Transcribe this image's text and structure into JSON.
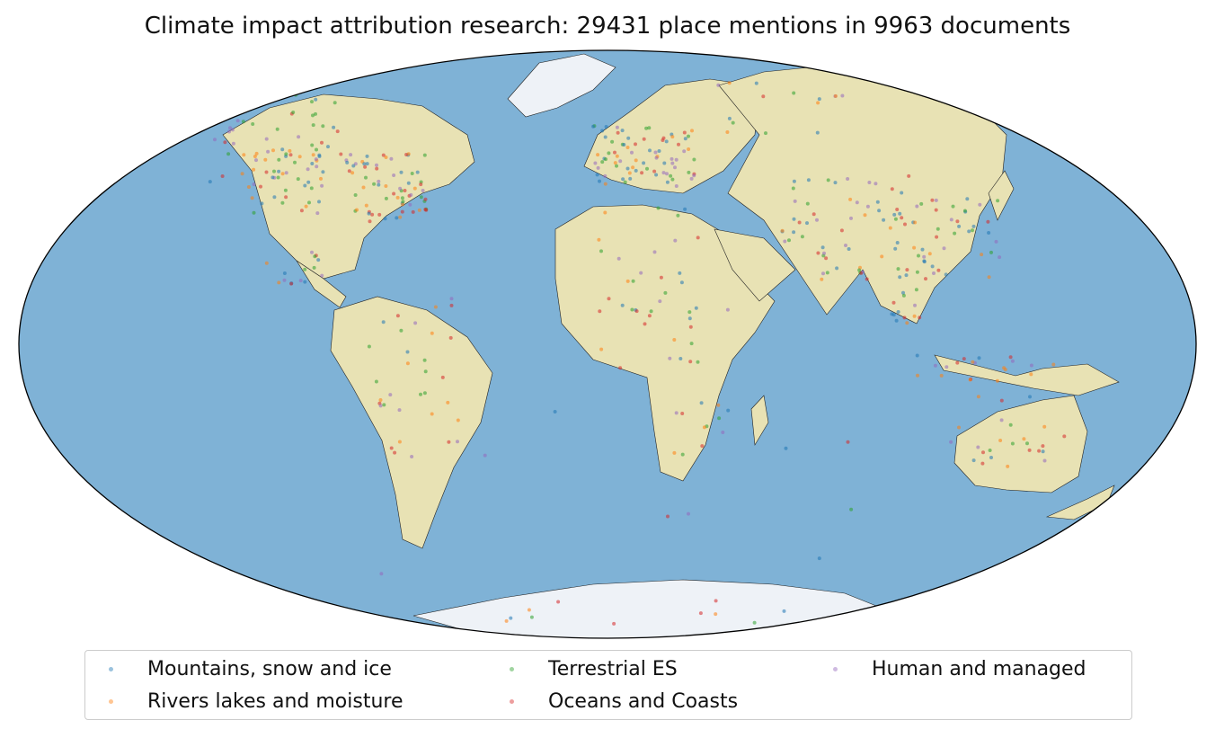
{
  "title": "Climate impact attribution research: 29431 place mentions in 9963 documents",
  "map": {
    "projection": "mollweide",
    "ocean_color": "#7fb2d6",
    "land_color": "#e8e2b4",
    "ice_color": "#eef2f7",
    "coastline_color": "#222222"
  },
  "legend": {
    "items": [
      {
        "label": "Mountains, snow and ice",
        "color": "#1f77b4"
      },
      {
        "label": "Rivers lakes and moisture",
        "color": "#ff7f0e"
      },
      {
        "label": "Terrestrial ES",
        "color": "#2ca02c"
      },
      {
        "label": "Oceans and Coasts",
        "color": "#d62728"
      },
      {
        "label": "Human and managed",
        "color": "#9467bd"
      }
    ]
  }
}
